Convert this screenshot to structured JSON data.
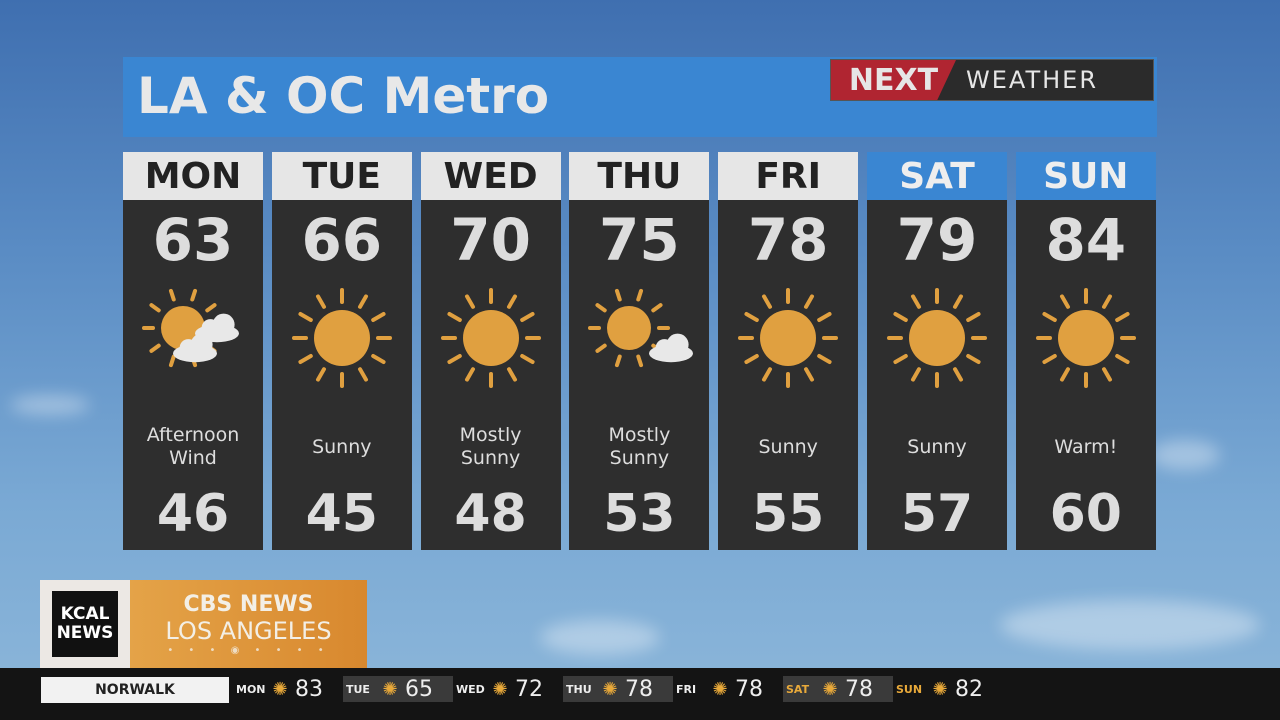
{
  "title": "LA & OC Metro",
  "logo": {
    "next": "NEXT",
    "weather": "WEATHER"
  },
  "colors": {
    "sun": "#e0a040",
    "header_weekday": "#e6e6e6",
    "header_weekend": "#3a86d2",
    "panel": "#2e2e2e",
    "brand_red": "#b02531"
  },
  "days": [
    {
      "day": "MON",
      "high": "63",
      "icon": "sun-clouds-icon",
      "condition": "Afternoon Wind",
      "low": "46",
      "weekend": false
    },
    {
      "day": "TUE",
      "high": "66",
      "icon": "sun-icon",
      "condition": "Sunny",
      "low": "45",
      "weekend": false
    },
    {
      "day": "WED",
      "high": "70",
      "icon": "sun-icon",
      "condition": "Mostly Sunny",
      "low": "48",
      "weekend": false
    },
    {
      "day": "THU",
      "high": "75",
      "icon": "sun-cloud-icon",
      "condition": "Mostly Sunny",
      "low": "53",
      "weekend": false
    },
    {
      "day": "FRI",
      "high": "78",
      "icon": "sun-icon",
      "condition": "Sunny",
      "low": "55",
      "weekend": false
    },
    {
      "day": "SAT",
      "high": "79",
      "icon": "sun-icon",
      "condition": "Sunny",
      "low": "57",
      "weekend": true
    },
    {
      "day": "SUN",
      "high": "84",
      "icon": "sun-icon",
      "condition": "Warm!",
      "low": "60",
      "weekend": true
    }
  ],
  "brand": {
    "kcal": "KCAL NEWS",
    "cbs": "CBS NEWS",
    "city": "LOS ANGELES"
  },
  "ticker": {
    "location": "NORWALK",
    "items": [
      {
        "day": "MON",
        "temp": "83"
      },
      {
        "day": "TUE",
        "temp": "65"
      },
      {
        "day": "WED",
        "temp": "72"
      },
      {
        "day": "THU",
        "temp": "78"
      },
      {
        "day": "FRI",
        "temp": "78"
      },
      {
        "day": "SAT",
        "temp": "78"
      },
      {
        "day": "SUN",
        "temp": "82"
      }
    ]
  }
}
